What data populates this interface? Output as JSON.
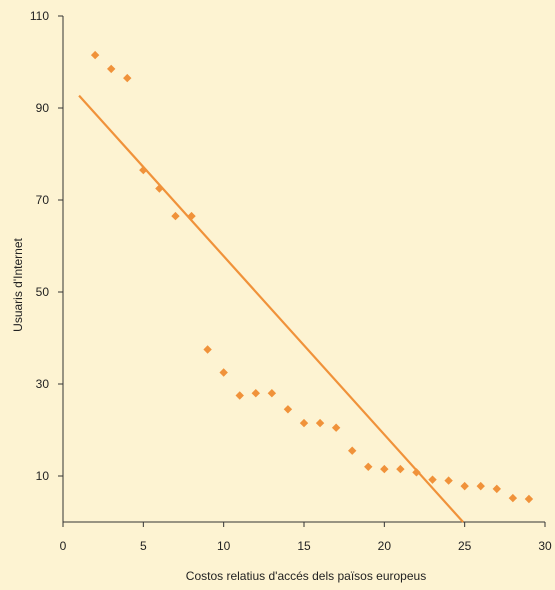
{
  "chart_data": {
    "type": "scatter",
    "xlabel": "Costos relatius d'accés dels països europeus",
    "ylabel": "Usuaris d'Internet",
    "xlim": [
      0,
      30
    ],
    "ylim": [
      0,
      110
    ],
    "x_ticks": [
      0,
      5,
      10,
      15,
      20,
      25,
      30
    ],
    "y_ticks": [
      10,
      30,
      50,
      70,
      90,
      110
    ],
    "grid": false,
    "colors": {
      "points": "#f0923a",
      "trend": "#f0923a",
      "axis": "#333333",
      "background": "#fdf3d2"
    },
    "series": [
      {
        "kind": "points",
        "x": [
          2,
          3,
          4,
          5,
          6,
          7,
          8,
          9,
          10,
          11,
          12,
          13,
          14,
          15,
          16,
          17,
          18,
          19,
          20,
          21,
          22,
          23,
          24,
          25,
          26,
          27,
          28,
          29
        ],
        "y": [
          101.5,
          98.5,
          96.5,
          76.5,
          72.5,
          66.5,
          66.5,
          37.5,
          32.5,
          27.5,
          28,
          28,
          24.5,
          21.5,
          21.5,
          20.5,
          15.5,
          12,
          11.5,
          11.5,
          10.8,
          9.2,
          9,
          7.8,
          7.8,
          7.2,
          5.2,
          5
        ]
      },
      {
        "kind": "trend_line",
        "x": [
          1,
          24.9
        ],
        "y": [
          92.7,
          0
        ]
      }
    ]
  }
}
